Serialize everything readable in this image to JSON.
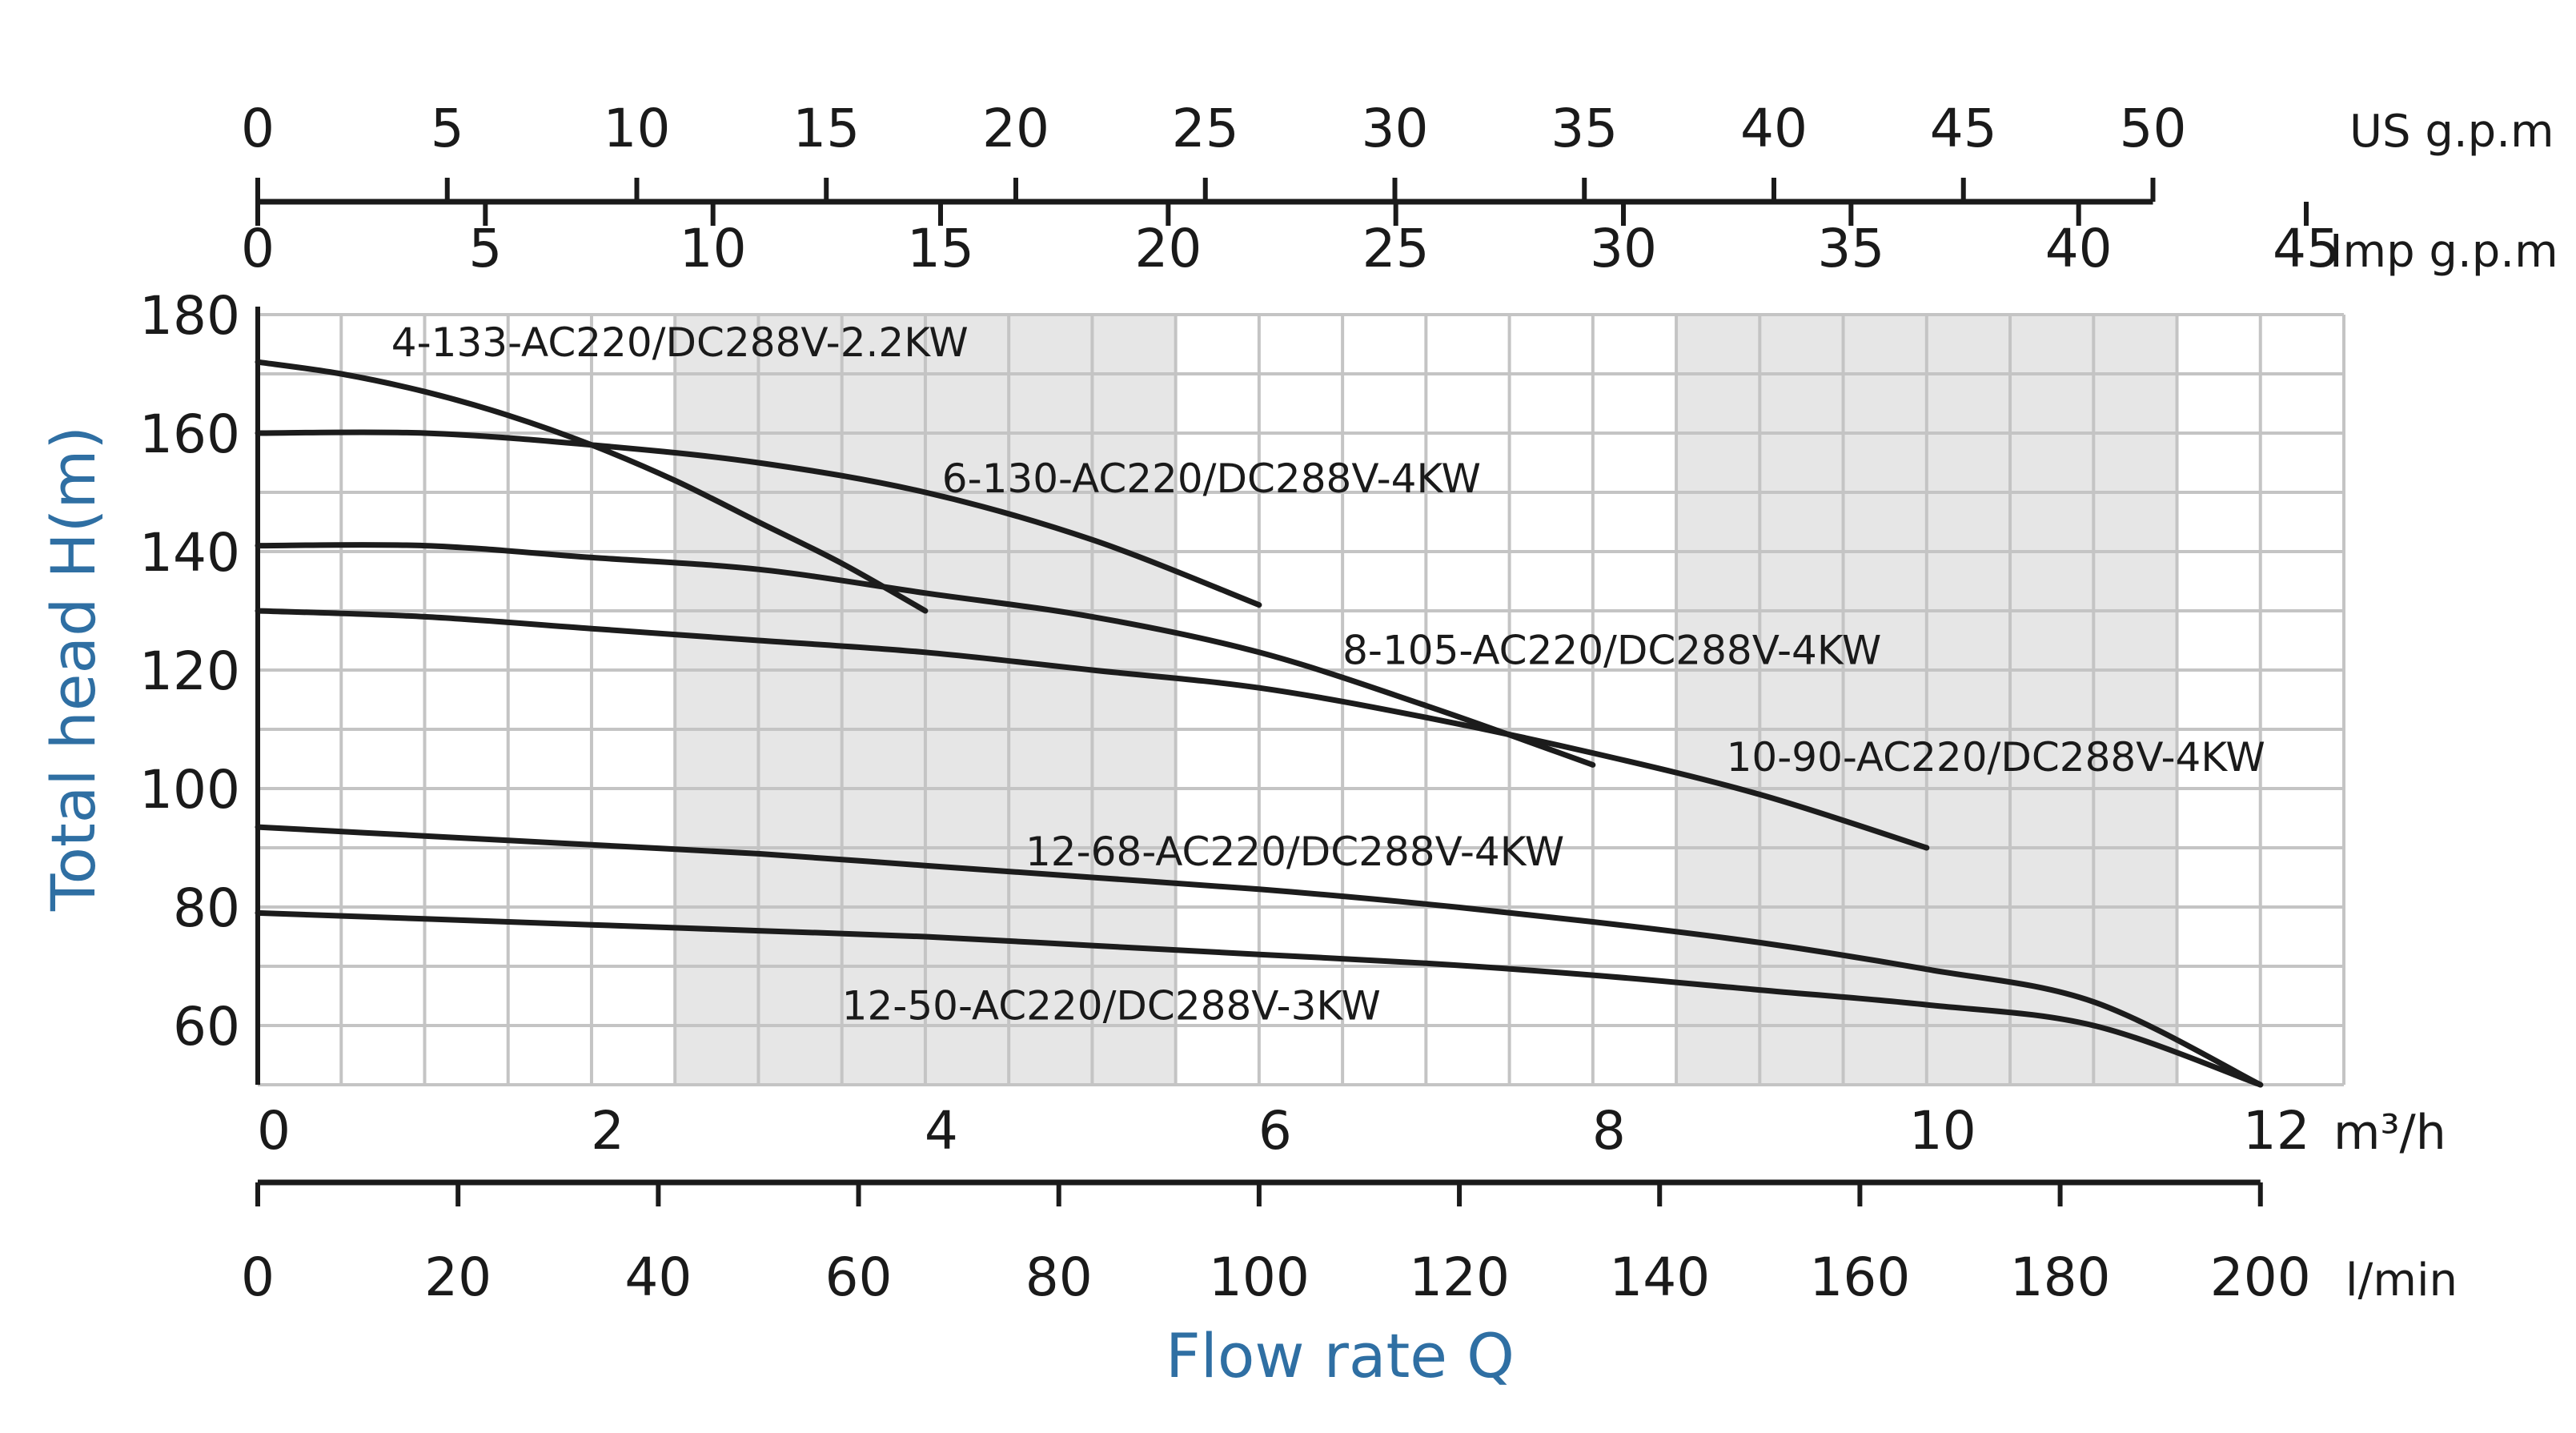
{
  "chart_data": {
    "type": "line",
    "title": "",
    "xlabel": "Flow rate Q",
    "ylabel": "Total head H(m)",
    "x_unit": "m³/h",
    "xlim": [
      0,
      12.5
    ],
    "ylim": [
      50,
      180
    ],
    "grid": true,
    "x_ticks": [
      0,
      2,
      4,
      6,
      8,
      10,
      12
    ],
    "y_ticks": [
      60,
      80,
      100,
      120,
      140,
      160,
      180
    ],
    "shaded_x_bands": [
      [
        2.5,
        5.5
      ],
      [
        8.5,
        11.5
      ]
    ],
    "secondary_axes": [
      {
        "unit": "US g.p.m",
        "ticks": [
          0,
          5,
          10,
          15,
          20,
          25,
          30,
          35,
          40,
          45,
          50
        ],
        "m3h_per_unit": 0.22712
      },
      {
        "unit": "Imp g.p.m",
        "ticks": [
          0,
          5,
          10,
          15,
          20,
          25,
          30,
          35,
          40,
          45
        ],
        "m3h_per_unit": 0.27277
      },
      {
        "unit": "l/min",
        "ticks": [
          0,
          20,
          40,
          60,
          80,
          100,
          120,
          140,
          160,
          180,
          200
        ],
        "m3h_per_unit": 0.06
      }
    ],
    "series": [
      {
        "name": "4-133-AC220/DC288V-2.2KW",
        "label_at": [
          0.8,
          173
        ],
        "x": [
          0,
          0.5,
          1.0,
          1.5,
          2.0,
          2.5,
          3.0,
          3.5,
          4.0
        ],
        "y": [
          172,
          170,
          167,
          163,
          158,
          152,
          145,
          138,
          130
        ]
      },
      {
        "name": "6-130-AC220/DC288V-4KW",
        "label_at": [
          4.1,
          150
        ],
        "x": [
          0,
          1,
          2,
          3,
          4,
          5,
          6
        ],
        "y": [
          160,
          160,
          158,
          155,
          150,
          142,
          131
        ]
      },
      {
        "name": "8-105-AC220/DC288V-4KW",
        "label_at": [
          6.5,
          121
        ],
        "x": [
          0,
          1,
          2,
          3,
          4,
          5,
          6,
          7,
          8
        ],
        "y": [
          141,
          141,
          139,
          137,
          133,
          129,
          123,
          114,
          104
        ]
      },
      {
        "name": "10-90-AC220/DC288V-4KW",
        "label_at": [
          8.8,
          103
        ],
        "x": [
          0,
          1,
          2,
          3,
          4,
          5,
          6,
          7,
          8,
          9,
          10
        ],
        "y": [
          130,
          129,
          127,
          125,
          123,
          120,
          117,
          112,
          106,
          99,
          90
        ]
      },
      {
        "name": "12-68-AC220/DC288V-4KW",
        "label_at": [
          4.6,
          87
        ],
        "x": [
          0,
          1,
          2,
          3,
          4,
          5,
          6,
          7,
          8,
          9,
          10,
          11,
          12
        ],
        "y": [
          93.5,
          92,
          90.5,
          89,
          87,
          85,
          83,
          80.5,
          77.5,
          74,
          69.5,
          64,
          50
        ]
      },
      {
        "name": "12-50-AC220/DC288V-3KW",
        "label_at": [
          3.5,
          61
        ],
        "x": [
          0,
          1,
          2,
          3,
          4,
          5,
          6,
          7,
          8,
          9,
          10,
          11,
          12
        ],
        "y": [
          79,
          78,
          77,
          76,
          75,
          73.5,
          72,
          70.5,
          68.5,
          66,
          63.5,
          60,
          50
        ]
      }
    ]
  }
}
